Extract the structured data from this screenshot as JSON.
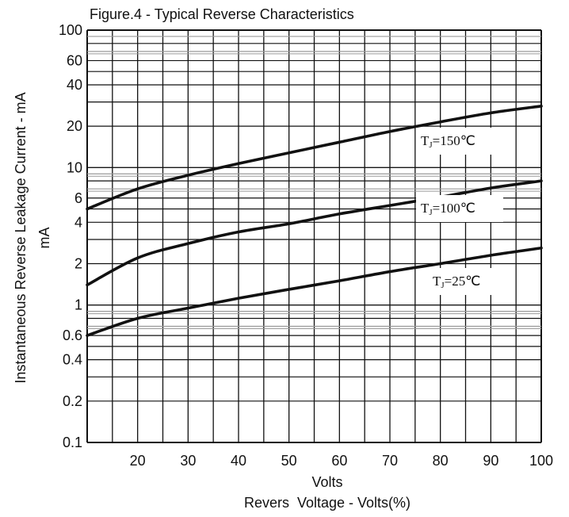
{
  "chart_data": {
    "type": "line",
    "title": "Figure.4 - Typical Reverse Characteristics",
    "ylabel": "Instantaneous Reverse Leakage Current - mA",
    "ylabel_unit": "mA",
    "xlabel": "Volts",
    "xlabel_secondary": "Revers  Voltage - Volts(%)",
    "y_scale": "log",
    "xlim": [
      10,
      100
    ],
    "ylim": [
      0.1,
      100
    ],
    "x_ticks": [
      20,
      30,
      40,
      50,
      60,
      70,
      80,
      90,
      100
    ],
    "x_tick_labels": [
      "20",
      "30",
      "40",
      "50",
      "60",
      "70",
      "80",
      "90",
      "100"
    ],
    "y_ticks": [
      0.1,
      0.2,
      0.4,
      0.6,
      1,
      2,
      4,
      6,
      10,
      20,
      40,
      60,
      100
    ],
    "y_tick_labels": [
      "0.1",
      "0.2",
      "0.4",
      "0.6",
      "1",
      "2",
      "4",
      "6",
      "10",
      "20",
      "40",
      "60",
      "100"
    ],
    "grid": true,
    "series": [
      {
        "name": "TJ=150°C",
        "label": "T",
        "label_sub": "J",
        "label_rest": "=150℃",
        "x": [
          10,
          20,
          30,
          40,
          50,
          60,
          70,
          80,
          90,
          100
        ],
        "y": [
          5,
          7,
          8.8,
          10.7,
          12.8,
          15.3,
          18.3,
          21.5,
          25,
          28
        ]
      },
      {
        "name": "TJ=100°C",
        "label": "T",
        "label_sub": "J",
        "label_rest": "=100℃",
        "x": [
          10,
          20,
          30,
          40,
          50,
          60,
          70,
          80,
          90,
          100
        ],
        "y": [
          1.4,
          2.2,
          2.8,
          3.4,
          3.9,
          4.6,
          5.3,
          6.1,
          7.1,
          8
        ]
      },
      {
        "name": "TJ=25°C",
        "label": "T",
        "label_sub": "J",
        "label_rest": "=25℃",
        "x": [
          10,
          20,
          30,
          40,
          50,
          60,
          70,
          80,
          90,
          100
        ],
        "y": [
          0.6,
          0.8,
          0.95,
          1.12,
          1.3,
          1.5,
          1.75,
          2.0,
          2.3,
          2.6
        ]
      }
    ],
    "colors": {
      "line": "#111111",
      "grid_major": "#111111",
      "grid_minor": "#9a9a9a"
    }
  }
}
